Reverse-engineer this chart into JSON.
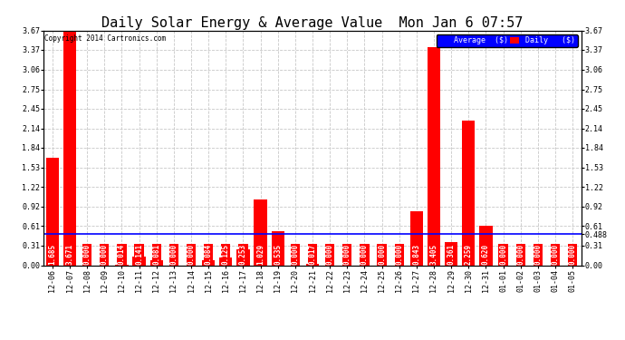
{
  "title": "Daily Solar Energy & Average Value  Mon Jan 6 07:57",
  "copyright": "Copyright 2014 Cartronics.com",
  "categories": [
    "12-06",
    "12-07",
    "12-08",
    "12-09",
    "12-10",
    "12-11",
    "12-12",
    "12-13",
    "12-14",
    "12-15",
    "12-16",
    "12-17",
    "12-18",
    "12-19",
    "12-20",
    "12-21",
    "12-22",
    "12-23",
    "12-24",
    "12-25",
    "12-26",
    "12-27",
    "12-28",
    "12-29",
    "12-30",
    "12-31",
    "01-01",
    "01-02",
    "01-03",
    "01-04",
    "01-05"
  ],
  "daily_values": [
    1.685,
    3.671,
    0.0,
    0.0,
    0.014,
    0.141,
    0.081,
    0.0,
    0.0,
    0.084,
    0.125,
    0.253,
    1.029,
    0.535,
    0.0,
    0.017,
    0.0,
    0.0,
    0.0,
    0.0,
    0.0,
    0.843,
    3.405,
    0.361,
    2.259,
    0.62,
    0.0,
    0.0,
    0.0,
    0.0,
    0.0
  ],
  "average_value": 0.488,
  "bar_color": "#ff0000",
  "average_line_color": "#0000ff",
  "average_line_label": "Average  ($)",
  "daily_label": "Daily   ($)",
  "background_color": "#ffffff",
  "grid_color": "#c8c8c8",
  "ylim": [
    0.0,
    3.67
  ],
  "yticks": [
    0.0,
    0.31,
    0.61,
    0.92,
    1.22,
    1.53,
    1.84,
    2.14,
    2.45,
    2.75,
    3.06,
    3.37,
    3.67
  ],
  "right_ytick_special": 0.488,
  "title_fontsize": 11,
  "tick_fontsize": 6,
  "label_fontsize": 5.5,
  "bar_width": 0.75
}
